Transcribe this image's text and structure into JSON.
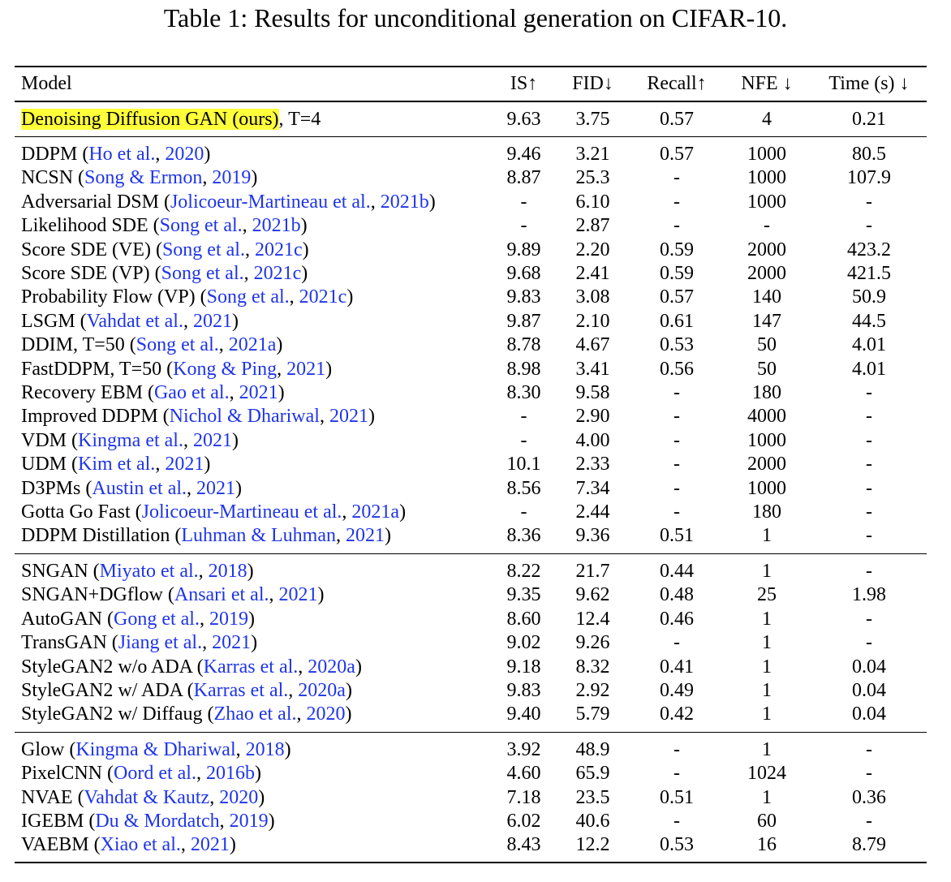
{
  "caption": "Table 1: Results for unconditional generation on CIFAR-10.",
  "table": {
    "header": [
      "Model",
      "IS↑",
      "FID↓",
      "Recall↑",
      "NFE ↓",
      "Time (s) ↓"
    ],
    "groups": [
      {
        "rows": [
          {
            "highlight": true,
            "model": [
              "Denoising Diffusion GAN (ours)",
              ", T=4"
            ],
            "cells": [
              "9.63",
              "3.75",
              "0.57",
              "4",
              "0.21"
            ]
          }
        ]
      },
      {
        "rows": [
          {
            "model": [
              "DDPM (",
              "Ho et al.",
              ", ",
              "2020",
              ")"
            ],
            "cells": [
              "9.46",
              "3.21",
              "0.57",
              "1000",
              "80.5"
            ]
          },
          {
            "model": [
              "NCSN (",
              "Song & Ermon",
              ", ",
              "2019",
              ")"
            ],
            "cells": [
              "8.87",
              "25.3",
              "-",
              "1000",
              "107.9"
            ]
          },
          {
            "model": [
              "Adversarial DSM (",
              "Jolicoeur-Martineau et al.",
              ", ",
              "2021b",
              ")"
            ],
            "cells": [
              "-",
              "6.10",
              "-",
              "1000",
              "-"
            ]
          },
          {
            "model": [
              "Likelihood SDE (",
              "Song et al.",
              ", ",
              "2021b",
              ")"
            ],
            "cells": [
              "-",
              "2.87",
              "-",
              "-",
              "-"
            ]
          },
          {
            "model": [
              "Score SDE (VE) (",
              "Song et al.",
              ", ",
              "2021c",
              ")"
            ],
            "cells": [
              "9.89",
              "2.20",
              "0.59",
              "2000",
              "423.2"
            ]
          },
          {
            "model": [
              "Score SDE (VP) (",
              "Song et al.",
              ", ",
              "2021c",
              ")"
            ],
            "cells": [
              "9.68",
              "2.41",
              "0.59",
              "2000",
              "421.5"
            ]
          },
          {
            "model": [
              "Probability Flow (VP) (",
              "Song et al.",
              ", ",
              "2021c",
              ")"
            ],
            "cells": [
              "9.83",
              "3.08",
              "0.57",
              "140",
              "50.9"
            ]
          },
          {
            "model": [
              "LSGM (",
              "Vahdat et al.",
              ", ",
              "2021",
              ")"
            ],
            "cells": [
              "9.87",
              "2.10",
              "0.61",
              "147",
              "44.5"
            ]
          },
          {
            "model": [
              "DDIM, T=50 (",
              "Song et al.",
              ", ",
              "2021a",
              ")"
            ],
            "cells": [
              "8.78",
              "4.67",
              "0.53",
              "50",
              "4.01"
            ]
          },
          {
            "model": [
              "FastDDPM, T=50 (",
              "Kong & Ping",
              ", ",
              "2021",
              ")"
            ],
            "cells": [
              "8.98",
              "3.41",
              "0.56",
              "50",
              "4.01"
            ]
          },
          {
            "model": [
              "Recovery EBM (",
              "Gao et al.",
              ", ",
              "2021",
              ")"
            ],
            "cells": [
              "8.30",
              "9.58",
              "-",
              "180",
              "-"
            ]
          },
          {
            "model": [
              "Improved DDPM (",
              "Nichol & Dhariwal",
              ", ",
              "2021",
              ")"
            ],
            "cells": [
              "-",
              "2.90",
              "-",
              "4000",
              "-"
            ]
          },
          {
            "model": [
              "VDM (",
              "Kingma et al.",
              ", ",
              "2021",
              ")"
            ],
            "cells": [
              "-",
              "4.00",
              "-",
              "1000",
              "-"
            ]
          },
          {
            "model": [
              "UDM (",
              "Kim et al.",
              ", ",
              "2021",
              ")"
            ],
            "cells": [
              "10.1",
              "2.33",
              "-",
              "2000",
              "-"
            ]
          },
          {
            "model": [
              "D3PMs (",
              "Austin et al.",
              ", ",
              "2021",
              ")"
            ],
            "cells": [
              "8.56",
              "7.34",
              "-",
              "1000",
              "-"
            ]
          },
          {
            "model": [
              "Gotta Go Fast (",
              "Jolicoeur-Martineau et al.",
              ", ",
              "2021a",
              ")"
            ],
            "cells": [
              "-",
              "2.44",
              "-",
              "180",
              "-"
            ]
          },
          {
            "model": [
              "DDPM Distillation (",
              "Luhman & Luhman",
              ", ",
              "2021",
              ")"
            ],
            "cells": [
              "8.36",
              "9.36",
              "0.51",
              "1",
              "-"
            ]
          }
        ]
      },
      {
        "rows": [
          {
            "model": [
              "SNGAN (",
              "Miyato et al.",
              ", ",
              "2018",
              ")"
            ],
            "cells": [
              "8.22",
              "21.7",
              "0.44",
              "1",
              "-"
            ]
          },
          {
            "model": [
              "SNGAN+DGflow (",
              "Ansari et al.",
              ", ",
              "2021",
              ")"
            ],
            "cells": [
              "9.35",
              "9.62",
              "0.48",
              "25",
              "1.98"
            ]
          },
          {
            "model": [
              "AutoGAN (",
              "Gong et al.",
              ", ",
              "2019",
              ")"
            ],
            "cells": [
              "8.60",
              "12.4",
              "0.46",
              "1",
              "-"
            ]
          },
          {
            "model": [
              "TransGAN (",
              "Jiang et al.",
              ", ",
              "2021",
              ")"
            ],
            "cells": [
              "9.02",
              "9.26",
              "-",
              "1",
              "-"
            ]
          },
          {
            "model": [
              "StyleGAN2 w/o ADA (",
              "Karras et al.",
              ", ",
              "2020a",
              ")"
            ],
            "cells": [
              "9.18",
              "8.32",
              "0.41",
              "1",
              "0.04"
            ]
          },
          {
            "model": [
              "StyleGAN2 w/ ADA (",
              "Karras et al.",
              ", ",
              "2020a",
              ")"
            ],
            "cells": [
              "9.83",
              "2.92",
              "0.49",
              "1",
              "0.04"
            ]
          },
          {
            "model": [
              "StyleGAN2 w/ Diffaug (",
              "Zhao et al.",
              ", ",
              "2020",
              ")"
            ],
            "cells": [
              "9.40",
              "5.79",
              "0.42",
              "1",
              "0.04"
            ]
          }
        ]
      },
      {
        "rows": [
          {
            "model": [
              "Glow (",
              "Kingma & Dhariwal",
              ", ",
              "2018",
              ")"
            ],
            "cells": [
              "3.92",
              "48.9",
              "-",
              "1",
              "-"
            ]
          },
          {
            "model": [
              "PixelCNN (",
              "Oord et al.",
              ", ",
              "2016b",
              ")"
            ],
            "cells": [
              "4.60",
              "65.9",
              "-",
              "1024",
              "-"
            ]
          },
          {
            "model": [
              "NVAE (",
              "Vahdat & Kautz",
              ", ",
              "2020",
              ")"
            ],
            "cells": [
              "7.18",
              "23.5",
              "0.51",
              "1",
              "0.36"
            ]
          },
          {
            "model": [
              "IGEBM (",
              "Du & Mordatch",
              ", ",
              "2019",
              ")"
            ],
            "cells": [
              "6.02",
              "40.6",
              "-",
              "60",
              "-"
            ]
          },
          {
            "model": [
              "VAEBM (",
              "Xiao et al.",
              ", ",
              "2021",
              ")"
            ],
            "cells": [
              "8.43",
              "12.2",
              "0.53",
              "16",
              "8.79"
            ]
          }
        ]
      }
    ]
  }
}
